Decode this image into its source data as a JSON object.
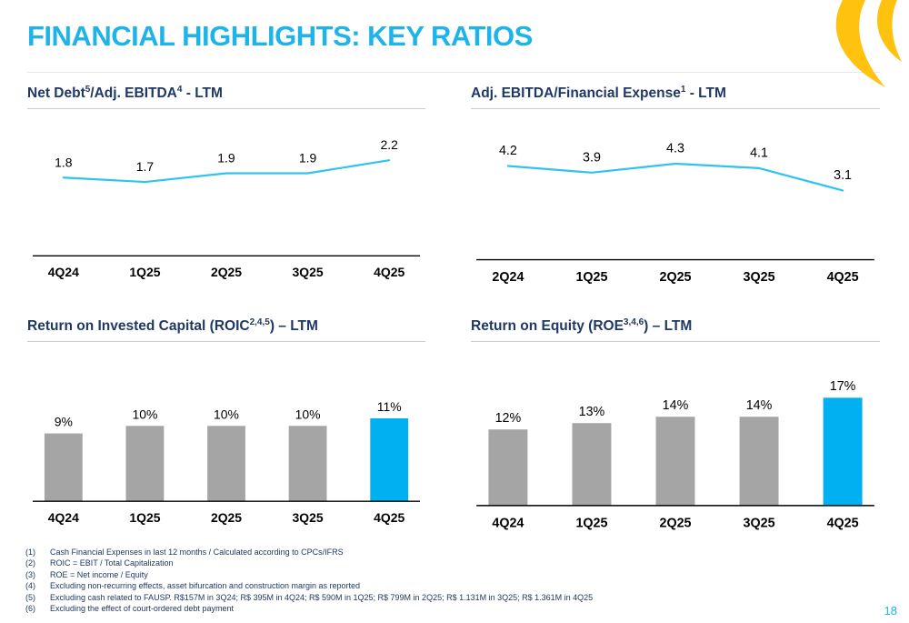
{
  "slide": {
    "title": "FINANCIAL HIGHLIGHTS: KEY RATIOS",
    "page_number": "18"
  },
  "colors": {
    "title": "#1FB4E9",
    "section_title": "#1F3864",
    "line": "#30C3F0",
    "bar": "#A5A5A5",
    "bar_highlight": "#00B0F0",
    "axis": "#000000",
    "label": "#000000",
    "footnote": "#1F3864",
    "logo_yellow": "#FFC20E"
  },
  "chart_data": [
    {
      "type": "line",
      "title_parts": [
        {
          "t": "Net Debt"
        },
        {
          "t": "5",
          "sup": true
        },
        {
          "t": "/Adj. EBITDA"
        },
        {
          "t": "4",
          "sup": true
        },
        {
          "t": " - LTM"
        }
      ],
      "categories": [
        "4Q24",
        "1Q25",
        "2Q25",
        "3Q25",
        "4Q25"
      ],
      "values": [
        1.8,
        1.7,
        1.9,
        1.9,
        2.2
      ],
      "value_labels": [
        "1.8",
        "1.7",
        "1.9",
        "1.9",
        "2.2"
      ],
      "ylim": [
        0,
        3
      ],
      "legend": "none",
      "grid": false
    },
    {
      "type": "line",
      "title_parts": [
        {
          "t": "Adj. EBITDA/Financial Expense"
        },
        {
          "t": "1",
          "sup": true
        },
        {
          "t": " - LTM"
        }
      ],
      "categories": [
        "2Q24",
        "1Q25",
        "2Q25",
        "3Q25",
        "4Q25"
      ],
      "values": [
        4.2,
        3.9,
        4.3,
        4.1,
        3.1
      ],
      "value_labels": [
        "4.2",
        "3.9",
        "4.3",
        "4.1",
        "3.1"
      ],
      "ylim": [
        0,
        6
      ],
      "legend": "none",
      "grid": false
    },
    {
      "type": "bar",
      "title_parts": [
        {
          "t": "Return on Invested Capital (ROIC"
        },
        {
          "t": "2,4,5",
          "sup": true
        },
        {
          "t": ") – LTM"
        }
      ],
      "categories": [
        "4Q24",
        "1Q25",
        "2Q25",
        "3Q25",
        "4Q25"
      ],
      "values": [
        9,
        10,
        10,
        10,
        11
      ],
      "value_labels": [
        "9%",
        "10%",
        "10%",
        "10%",
        "11%"
      ],
      "ylim": [
        0,
        18
      ],
      "highlight_index": 4,
      "legend": "none",
      "grid": false
    },
    {
      "type": "bar",
      "title_parts": [
        {
          "t": "Return on Equity (ROE"
        },
        {
          "t": "3,4,6",
          "sup": true
        },
        {
          "t": ") – LTM"
        }
      ],
      "categories": [
        "4Q24",
        "1Q25",
        "2Q25",
        "3Q25",
        "4Q25"
      ],
      "values": [
        12,
        13,
        14,
        14,
        17
      ],
      "value_labels": [
        "12%",
        "13%",
        "14%",
        "14%",
        "17%"
      ],
      "ylim": [
        0,
        22
      ],
      "highlight_index": 4,
      "legend": "none",
      "grid": false
    }
  ],
  "footnotes": [
    {
      "num": "(1)",
      "text": "Cash Financial Expenses in last 12 months / Calculated according to CPCs/IFRS"
    },
    {
      "num": "(2)",
      "text": "ROIC = EBIT / Total Capitalization"
    },
    {
      "num": "(3)",
      "text": "ROE = Net income / Equity"
    },
    {
      "num": "(4)",
      "text": "Excluding non-recurring effects, asset bifurcation and construction margin as reported"
    },
    {
      "num": "(5)",
      "text": "Excluding cash related to FAUSP. R$157M in 3Q24; R$ 395M in 4Q24; R$ 590M in 1Q25; R$ 799M in 2Q25; R$ 1.131M in 3Q25; R$ 1.361M in 4Q25"
    },
    {
      "num": "(6)",
      "text": "Excluding the effect of court-ordered debt payment"
    }
  ]
}
